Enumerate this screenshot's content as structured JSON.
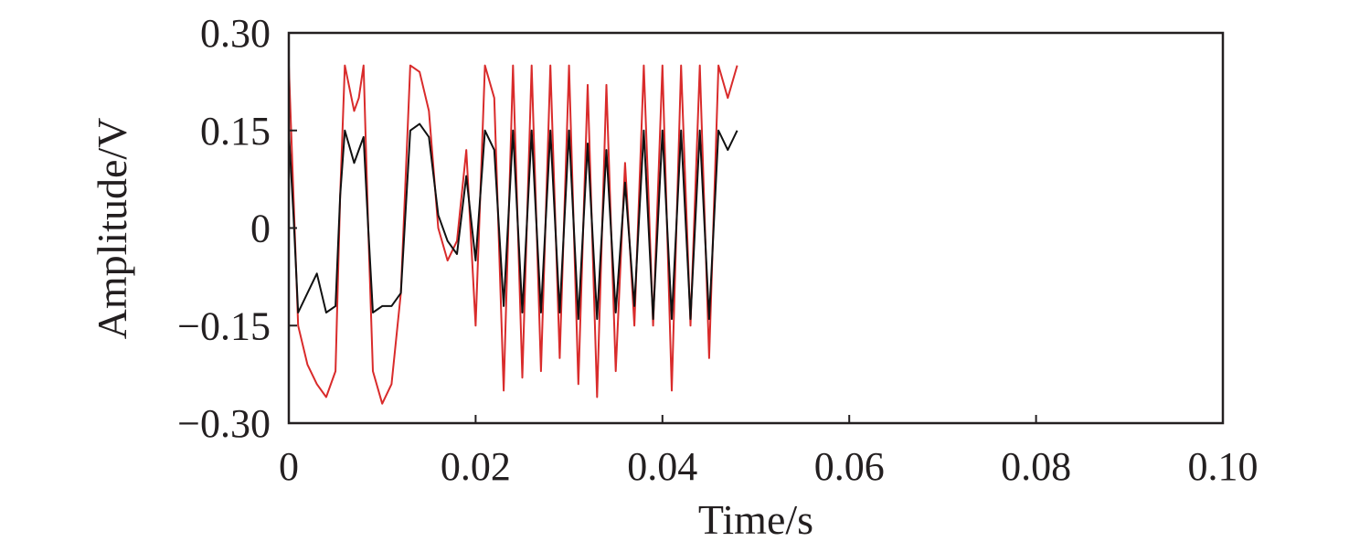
{
  "chart_data": {
    "type": "line",
    "title": "",
    "xlabel": "Time/s",
    "ylabel": "Amplitude/V",
    "xlim": [
      0,
      0.1
    ],
    "ylim": [
      -0.3,
      0.3
    ],
    "x_ticks": [
      0,
      0.02,
      0.04,
      0.06,
      0.08,
      0.1
    ],
    "x_tick_labels": [
      "0",
      "0.02",
      "0.04",
      "0.06",
      "0.08",
      "0.10"
    ],
    "y_ticks": [
      0.3,
      0.15,
      0,
      -0.15,
      -0.3
    ],
    "y_tick_labels": [
      "0.30",
      "0.15",
      "0",
      "−0.15",
      "−0.30"
    ],
    "grid": false,
    "legend": "none",
    "series": [
      {
        "color": "#d92b2b",
        "x": [
          0,
          0.0005,
          0.001,
          0.002,
          0.003,
          0.004,
          0.005,
          0.0055,
          0.006,
          0.007,
          0.0075,
          0.008,
          0.0085,
          0.009,
          0.01,
          0.011,
          0.012,
          0.013,
          0.014,
          0.015,
          0.016,
          0.017,
          0.018,
          0.019,
          0.02,
          0.021,
          0.022,
          0.023,
          0.024,
          0.025,
          0.026,
          0.027,
          0.028,
          0.029,
          0.03,
          0.031,
          0.032,
          0.033,
          0.034,
          0.035,
          0.036,
          0.037,
          0.038,
          0.039,
          0.04,
          0.041,
          0.042,
          0.043,
          0.044,
          0.045,
          0.046,
          0.047,
          0.048
        ],
        "y": [
          0.25,
          0.05,
          -0.15,
          -0.21,
          -0.24,
          -0.26,
          -0.22,
          0.05,
          0.25,
          0.18,
          0.2,
          0.25,
          0.0,
          -0.22,
          -0.27,
          -0.24,
          -0.1,
          0.25,
          0.24,
          0.18,
          0.0,
          -0.05,
          -0.02,
          0.12,
          -0.15,
          0.25,
          0.2,
          -0.25,
          0.25,
          -0.23,
          0.25,
          -0.22,
          0.25,
          -0.2,
          0.25,
          -0.24,
          0.22,
          -0.26,
          0.22,
          -0.22,
          0.1,
          -0.15,
          0.25,
          -0.15,
          0.25,
          -0.25,
          0.25,
          -0.15,
          0.25,
          -0.2,
          0.25,
          0.2,
          0.25
        ]
      },
      {
        "color": "#111111",
        "x": [
          0,
          0.0005,
          0.001,
          0.002,
          0.003,
          0.004,
          0.005,
          0.0055,
          0.006,
          0.007,
          0.0075,
          0.008,
          0.0085,
          0.009,
          0.01,
          0.011,
          0.012,
          0.013,
          0.014,
          0.015,
          0.016,
          0.017,
          0.018,
          0.019,
          0.02,
          0.021,
          0.022,
          0.023,
          0.024,
          0.025,
          0.026,
          0.027,
          0.028,
          0.029,
          0.03,
          0.031,
          0.032,
          0.033,
          0.034,
          0.035,
          0.036,
          0.037,
          0.038,
          0.039,
          0.04,
          0.041,
          0.042,
          0.043,
          0.044,
          0.045,
          0.046,
          0.047,
          0.048
        ],
        "y": [
          0.15,
          0.02,
          -0.13,
          -0.1,
          -0.07,
          -0.13,
          -0.12,
          0.05,
          0.15,
          0.1,
          0.12,
          0.14,
          0.0,
          -0.13,
          -0.12,
          -0.12,
          -0.1,
          0.15,
          0.16,
          0.14,
          0.02,
          -0.02,
          -0.04,
          0.08,
          -0.05,
          0.15,
          0.12,
          -0.12,
          0.15,
          -0.13,
          0.15,
          -0.13,
          0.15,
          -0.13,
          0.15,
          -0.14,
          0.13,
          -0.14,
          0.12,
          -0.13,
          0.07,
          -0.12,
          0.15,
          -0.14,
          0.15,
          -0.14,
          0.15,
          -0.14,
          0.15,
          -0.14,
          0.15,
          0.12,
          0.15
        ]
      }
    ]
  }
}
